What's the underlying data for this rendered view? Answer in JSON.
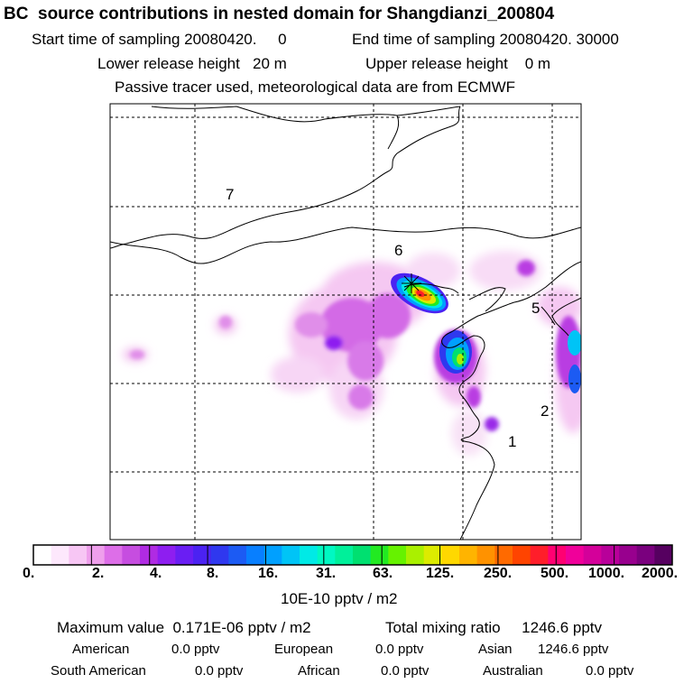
{
  "header": {
    "title": "BC  source contributions in nested domain for Shangdianzi_200804",
    "start_sampling": "Start time of sampling 20080420.     0",
    "end_sampling": "End time of sampling 20080420. 30000",
    "lower_release": "Lower release height   20 m",
    "upper_release": "Upper release height    0 m",
    "tracer_note": "Passive tracer used, meteorological data are from ECMWF"
  },
  "map": {
    "region_labels": [
      "1",
      "2",
      "5",
      "6",
      "7"
    ],
    "receptor_marker": "star-icon"
  },
  "colorbar": {
    "ticks": [
      "0.",
      "2.",
      "4.",
      "8.",
      "16.",
      "31.",
      "63.",
      "125.",
      "250.",
      "500.",
      "1000.",
      "2000."
    ],
    "units": "10E-10 pptv / m2",
    "colors": [
      "#ffffff",
      "#fde8fc",
      "#f7c6f4",
      "#ef9fec",
      "#dd6ee8",
      "#c64de0",
      "#b02be3",
      "#8e1ef0",
      "#6a1ef3",
      "#4b22f2",
      "#2f38ef",
      "#1c5bf3",
      "#087fff",
      "#00a0ff",
      "#00c4f6",
      "#00eae6",
      "#00f8c2",
      "#00f09a",
      "#00e070",
      "#22ea22",
      "#66f200",
      "#aaf000",
      "#dceb00",
      "#ffd800",
      "#ffb400",
      "#ff9200",
      "#ff6a00",
      "#ff4400",
      "#ff1e2a",
      "#ff0072",
      "#f0009a",
      "#d4009a",
      "#b8009a",
      "#98008e",
      "#7a007e",
      "#560060"
    ]
  },
  "stats": {
    "max_value": "Maximum value  0.171E-06 pptv / m2",
    "total_mixing": "Total mixing ratio     1246.6 pptv",
    "regions": [
      {
        "name": "American",
        "value": "0.0 pptv"
      },
      {
        "name": "European",
        "value": "0.0 pptv"
      },
      {
        "name": "Asian",
        "value": "1246.6 pptv"
      },
      {
        "name": "South American",
        "value": "0.0 pptv"
      },
      {
        "name": "African",
        "value": "0.0 pptv"
      },
      {
        "name": "Australian",
        "value": "0.0 pptv"
      }
    ]
  }
}
